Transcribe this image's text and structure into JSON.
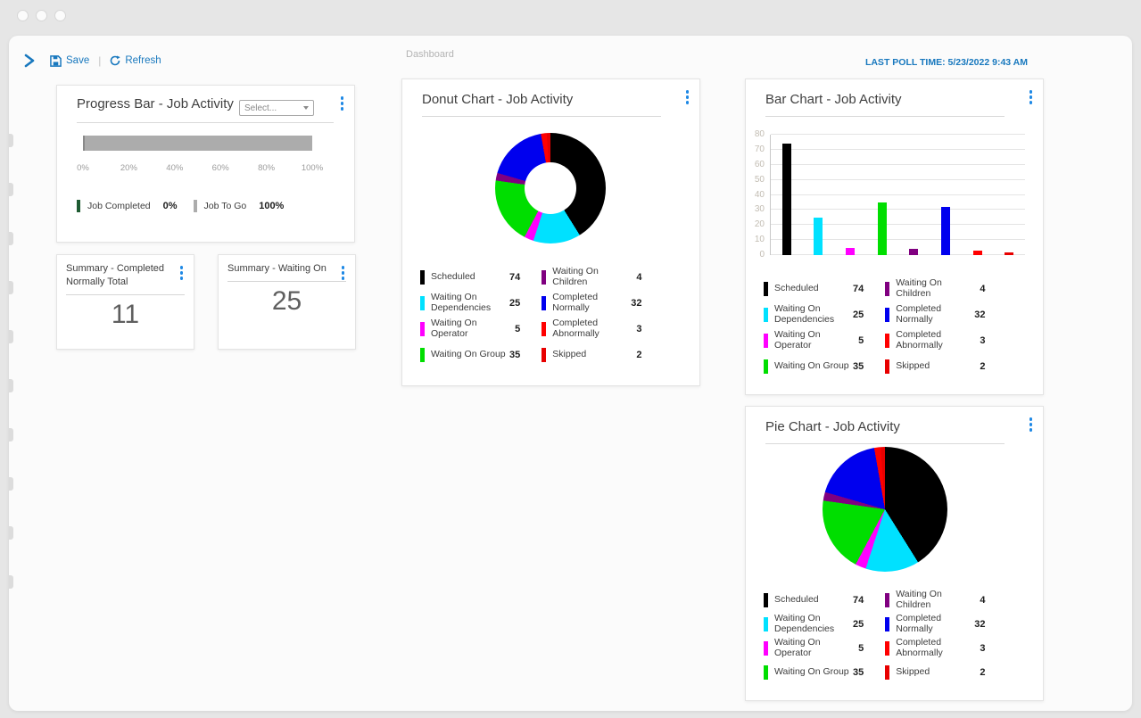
{
  "colors": {
    "accent": "#1878BE",
    "kebab_dot": "#1E88E5"
  },
  "toolbar": {
    "save_label": "Save",
    "refresh_label": "Refresh",
    "divider": "|",
    "page_title": "Dashboard",
    "last_poll": "LAST POLL TIME: 5/23/2022 9:43 AM"
  },
  "progress_card": {
    "title": "Progress Bar - Job Activity",
    "select_placeholder": "Select...",
    "axis_labels": [
      "0%",
      "20%",
      "40%",
      "60%",
      "80%",
      "100%"
    ],
    "bar": {
      "completed_pct": 0,
      "togo_pct": 100,
      "fill_color": "#ACACAC"
    },
    "legend": [
      {
        "label": "Job Completed",
        "value": "0%",
        "color": "#1E5B32"
      },
      {
        "label": "Job To Go",
        "value": "100%",
        "color": "#ACACAC"
      }
    ]
  },
  "summary_cards": [
    {
      "title": "Summary - Completed Normally Total",
      "value": "11"
    },
    {
      "title": "Summary - Waiting On",
      "value": "25"
    }
  ],
  "chart_data": [
    {
      "type": "donut",
      "title": "Donut Chart - Job Activity",
      "legend_position": "bottom-two-column",
      "series": [
        {
          "label": "Scheduled",
          "value": 74,
          "color": "#000000"
        },
        {
          "label": "Waiting On Dependencies",
          "value": 25,
          "color": "#00E1FF"
        },
        {
          "label": "Waiting On Operator",
          "value": 5,
          "color": "#FF00FF"
        },
        {
          "label": "Waiting On Group",
          "value": 35,
          "color": "#00DE00"
        },
        {
          "label": "Waiting On Children",
          "value": 4,
          "color": "#800080"
        },
        {
          "label": "Completed Normally",
          "value": 32,
          "color": "#0000EE"
        },
        {
          "label": "Completed Abnormally",
          "value": 3,
          "color": "#FF0000"
        },
        {
          "label": "Skipped",
          "value": 2,
          "color": "#E80000"
        }
      ]
    },
    {
      "type": "bar",
      "title": "Bar Chart - Job Activity",
      "ylim": [
        0,
        80
      ],
      "ytick_step": 10,
      "grid": true,
      "legend_position": "bottom-two-column",
      "series": [
        {
          "label": "Scheduled",
          "value": 74,
          "color": "#000000"
        },
        {
          "label": "Waiting On Dependencies",
          "value": 25,
          "color": "#00E1FF"
        },
        {
          "label": "Waiting On Operator",
          "value": 5,
          "color": "#FF00FF"
        },
        {
          "label": "Waiting On Group",
          "value": 35,
          "color": "#00DE00"
        },
        {
          "label": "Waiting On Children",
          "value": 4,
          "color": "#800080"
        },
        {
          "label": "Completed Normally",
          "value": 32,
          "color": "#0000EE"
        },
        {
          "label": "Completed Abnormally",
          "value": 3,
          "color": "#FF0000"
        },
        {
          "label": "Skipped",
          "value": 2,
          "color": "#E80000"
        }
      ]
    },
    {
      "type": "pie",
      "title": "Pie Chart - Job Activity",
      "legend_position": "bottom-two-column",
      "series": [
        {
          "label": "Scheduled",
          "value": 74,
          "color": "#000000"
        },
        {
          "label": "Waiting On Dependencies",
          "value": 25,
          "color": "#00E1FF"
        },
        {
          "label": "Waiting On Operator",
          "value": 5,
          "color": "#FF00FF"
        },
        {
          "label": "Waiting On Group",
          "value": 35,
          "color": "#00DE00"
        },
        {
          "label": "Waiting On Children",
          "value": 4,
          "color": "#800080"
        },
        {
          "label": "Completed Normally",
          "value": 32,
          "color": "#0000EE"
        },
        {
          "label": "Completed Abnormally",
          "value": 3,
          "color": "#FF0000"
        },
        {
          "label": "Skipped",
          "value": 2,
          "color": "#E80000"
        }
      ]
    }
  ]
}
